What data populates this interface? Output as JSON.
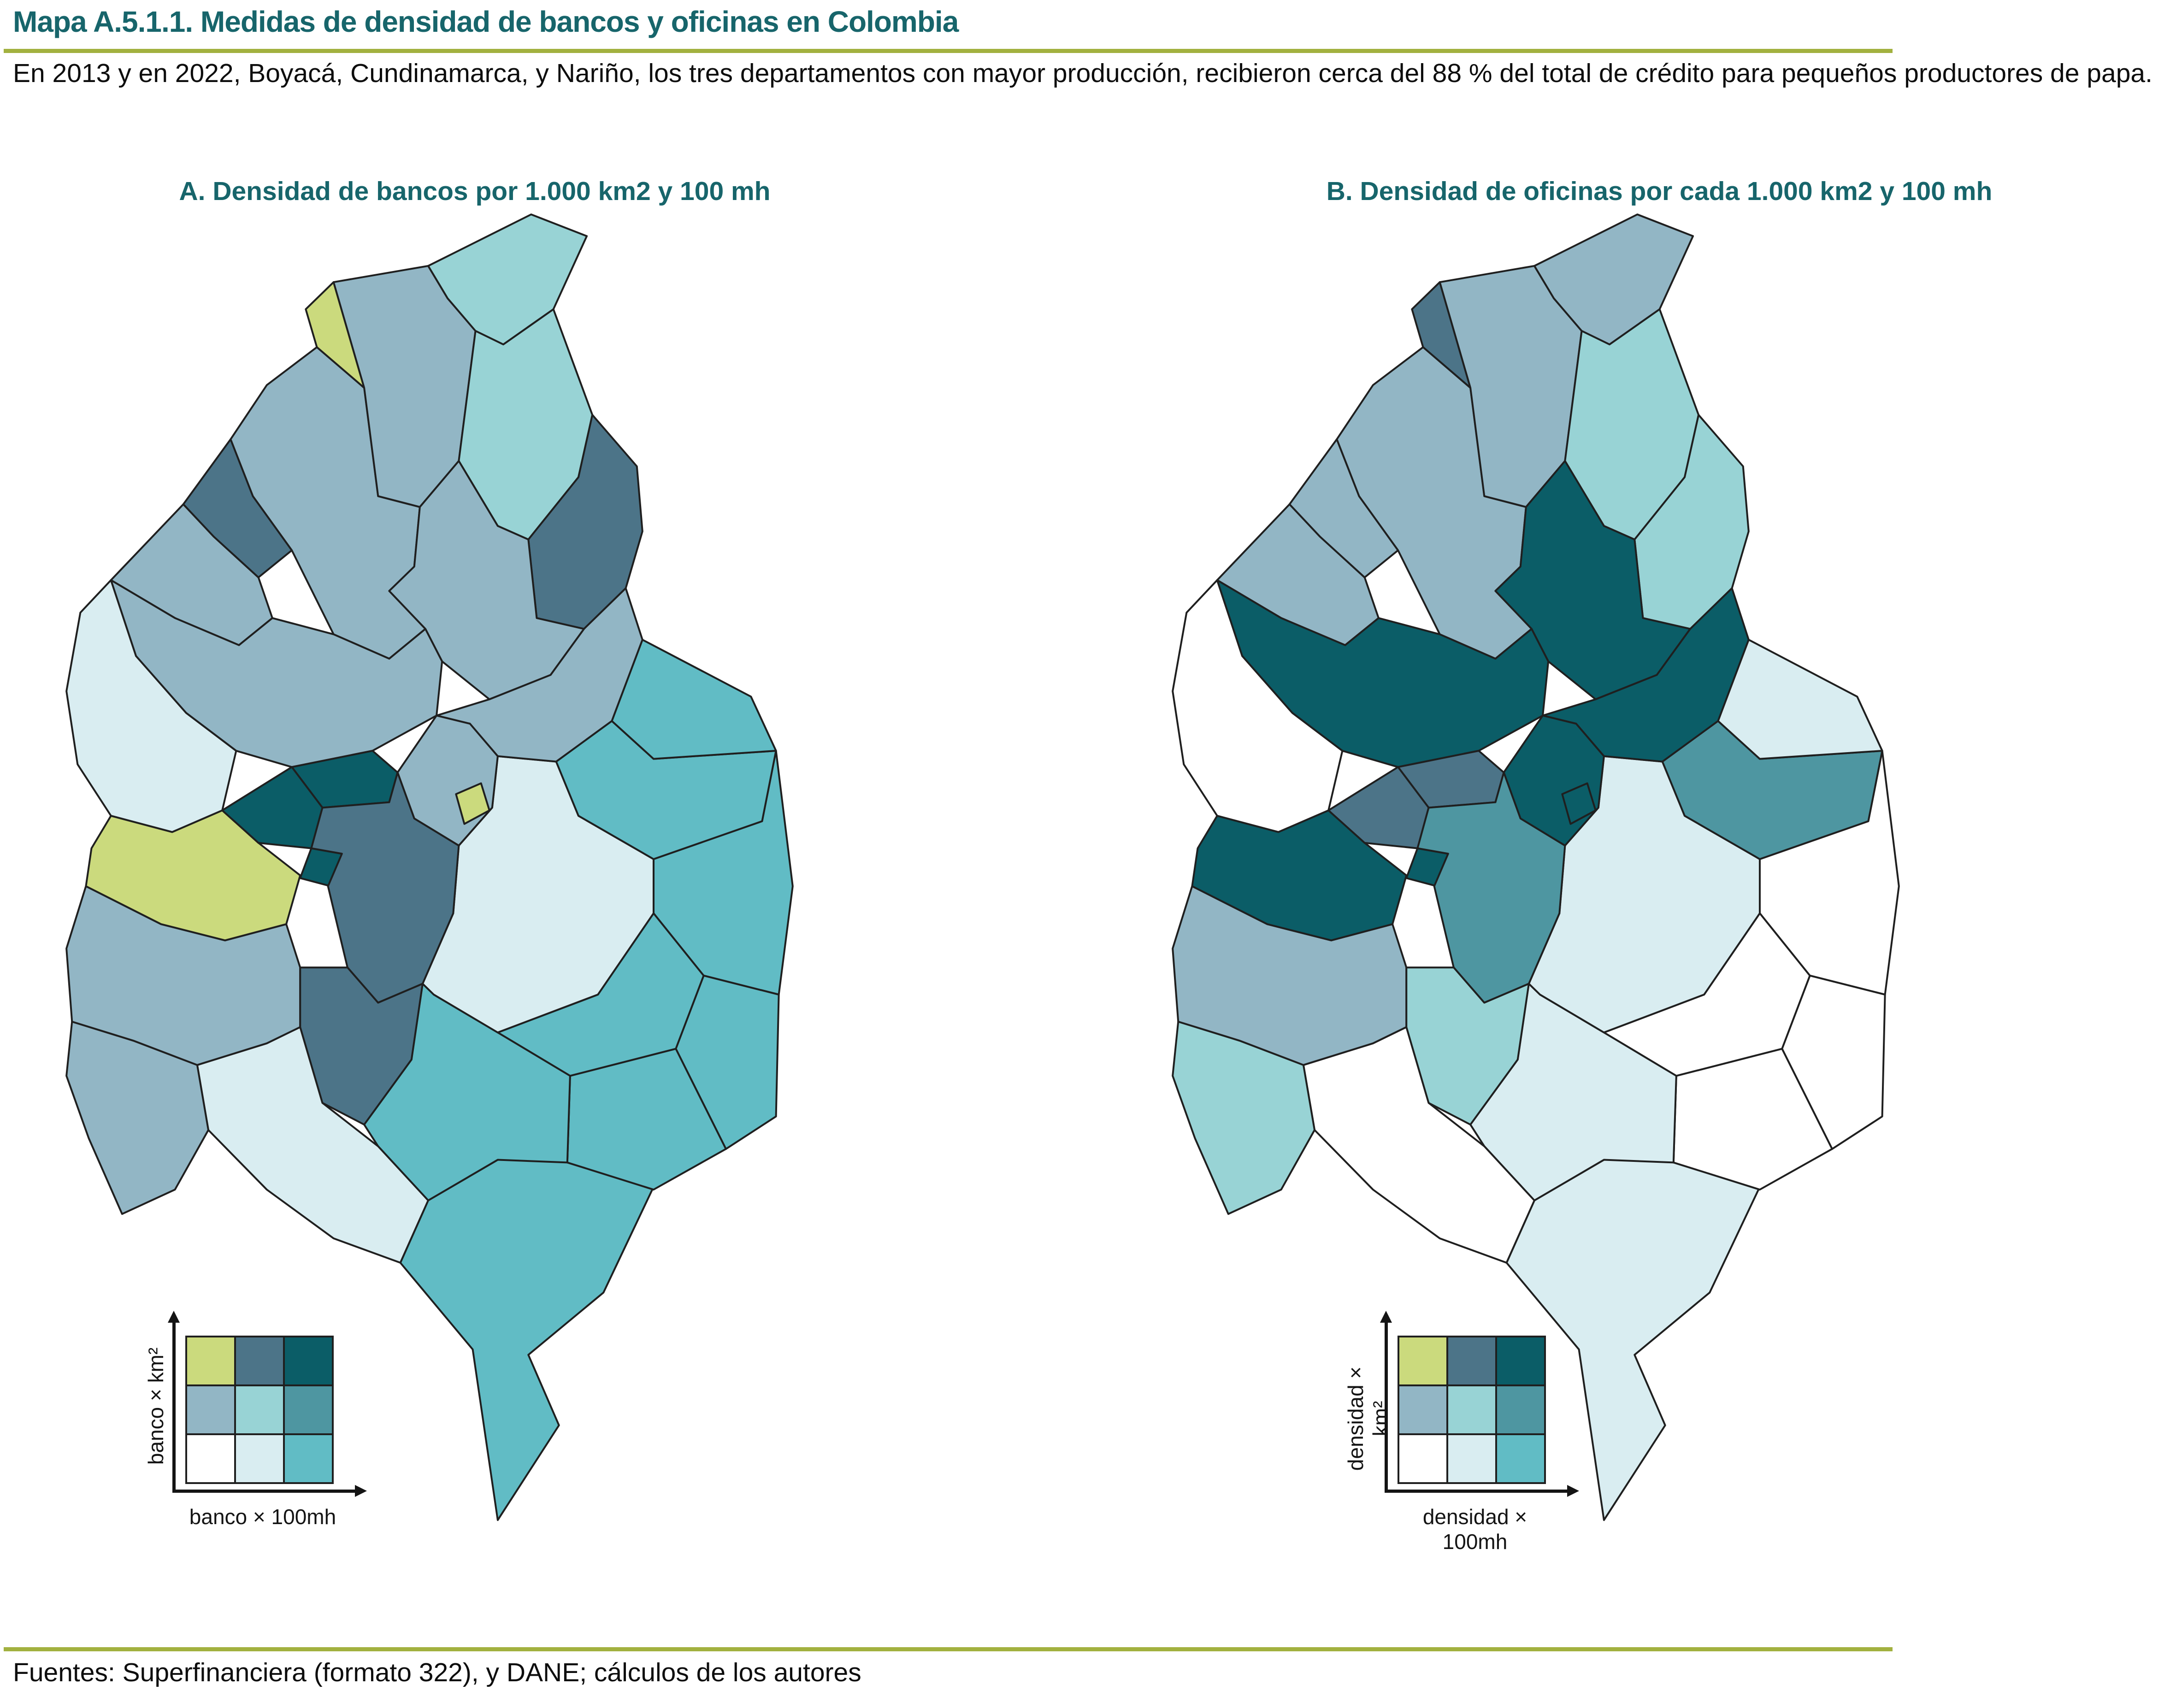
{
  "header": {
    "title": "Mapa A.5.1.1. Medidas de densidad de bancos y oficinas en Colombia",
    "subtitle": "En  2013 y en 2022, Boyacá, Cundinamarca, y Nariño, los tres departamentos con mayor producción, recibieron cerca del 88 % del total de crédito para pequeños productores de papa."
  },
  "footer": {
    "source": "Fuentes: Superfinanciera (formato 322), y DANE; cálculos de los autores"
  },
  "theme": {
    "title_color": "#17656b",
    "rule_color": "#a2b13f",
    "map_border_color": "#1f1f1f",
    "text_color": "#0d0d0d"
  },
  "legend": {
    "colors": {
      "r1c1": "#cbda7d",
      "r1c2": "#4c7488",
      "r1c3": "#0b5d67",
      "r2c1": "#92b6c5",
      "r2c2": "#98d3d5",
      "r2c3": "#4e96a1",
      "r3c1": "#ffffff",
      "r3c2": "#d9edf1",
      "r3c3": "#61bcc5"
    },
    "grid_order": [
      "r1c1",
      "r1c2",
      "r1c3",
      "r2c1",
      "r2c2",
      "r2c3",
      "r3c1",
      "r3c2",
      "r3c3"
    ]
  },
  "panels": [
    {
      "id": "A",
      "title": "A. Densidad de bancos por 1.000 km2 y 100 mh",
      "legend": {
        "y_label": "banco × km²",
        "x_label": "banco × 100mh"
      },
      "departments": {
        "amazonas": "r3c3",
        "vichada": "r3c3",
        "guainia": "r3c3",
        "vaupes": "r3c3",
        "guaviare": "r3c3",
        "caqueta": "r3c3",
        "meta": "r3c2",
        "casanare": "r3c3",
        "arauca": "r3c3",
        "putumayo": "r3c2",
        "narino": "r2c1",
        "cauca": "r2c1",
        "valle": "r1c1",
        "choco": "r3c2",
        "cordoba": "r2c1",
        "sucre": "r1c2",
        "bolivar": "r2c1",
        "atlantico": "r1c1",
        "magdalena": "r2c1",
        "guajira": "r2c2",
        "cesar": "r2c2",
        "norte_de_santander": "r1c2",
        "santander": "r2c1",
        "antioquia": "r2c1",
        "boyaca": "r2c1",
        "cundinamarca": "r2c1",
        "caldas": "r1c3",
        "risaralda": "r1c3",
        "quindio": "r1c3",
        "tolima": "r1c2",
        "huila": "r1c2",
        "bogota": "r1c1"
      }
    },
    {
      "id": "B",
      "title": "B. Densidad de oficinas por cada 1.000 km2 y 100 mh",
      "legend": {
        "y_label": "densidad × km²",
        "x_label": "densidad × 100mh"
      },
      "departments": {
        "amazonas": "r3c2",
        "vichada": "r3c1",
        "guainia": "r3c1",
        "vaupes": "r3c1",
        "guaviare": "r3c1",
        "caqueta": "r3c2",
        "meta": "r3c2",
        "casanare": "r2c3",
        "arauca": "r3c2",
        "putumayo": "r3c1",
        "narino": "r2c2",
        "cauca": "r2c1",
        "valle": "r1c3",
        "choco": "r3c1",
        "cordoba": "r2c1",
        "sucre": "r2c1",
        "bolivar": "r2c1",
        "atlantico": "r1c2",
        "magdalena": "r2c1",
        "guajira": "r2c1",
        "cesar": "r2c2",
        "norte_de_santander": "r2c2",
        "santander": "r1c3",
        "antioquia": "r1c3",
        "boyaca": "r1c3",
        "cundinamarca": "r1c3",
        "caldas": "r1c2",
        "risaralda": "r1c2",
        "quindio": "r1c3",
        "tolima": "r2c3",
        "huila": "r2c2",
        "narino_note": "r2c2",
        "putumayo_note": "r3c1",
        "bogota": "r1c3"
      }
    }
  ]
}
